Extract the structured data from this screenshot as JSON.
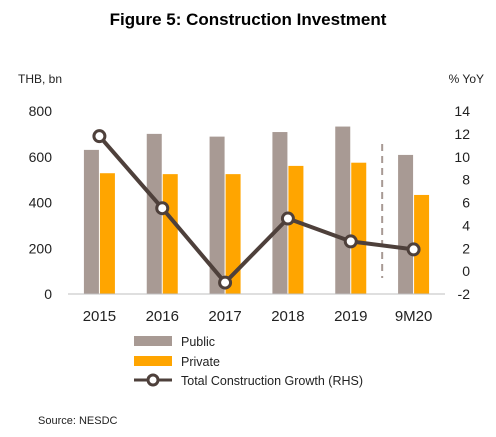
{
  "chart_data": {
    "type": "bar",
    "title": "Figure 5: Construction Investment",
    "y_left_unit": "THB, bn",
    "y_right_unit": "% YoY",
    "categories": [
      "2015",
      "2016",
      "2017",
      "2018",
      "2019",
      "9M20"
    ],
    "series": [
      {
        "name": "Public",
        "type": "bar",
        "axis": "left",
        "color": "#a89a94",
        "values": [
          630,
          700,
          688,
          708,
          732,
          608
        ]
      },
      {
        "name": "Private",
        "type": "bar",
        "axis": "left",
        "color": "#ffa500",
        "values": [
          528,
          524,
          524,
          560,
          574,
          433
        ]
      },
      {
        "name": "Total Construction Growth (RHS)",
        "type": "line",
        "axis": "right",
        "color": "#4e403b",
        "values": [
          11.8,
          5.5,
          -1.0,
          4.6,
          2.6,
          1.9
        ]
      }
    ],
    "y_left": {
      "min": 0,
      "max": 800,
      "ticks": [
        0,
        200,
        400,
        600,
        800
      ]
    },
    "y_right": {
      "min": -2,
      "max": 14,
      "ticks": [
        -2,
        0,
        2,
        4,
        6,
        8,
        10,
        12,
        14
      ]
    },
    "grid": false,
    "legend_position": "bottom-center",
    "divider_color": "#a89a94",
    "source": "Source: NESDC"
  }
}
